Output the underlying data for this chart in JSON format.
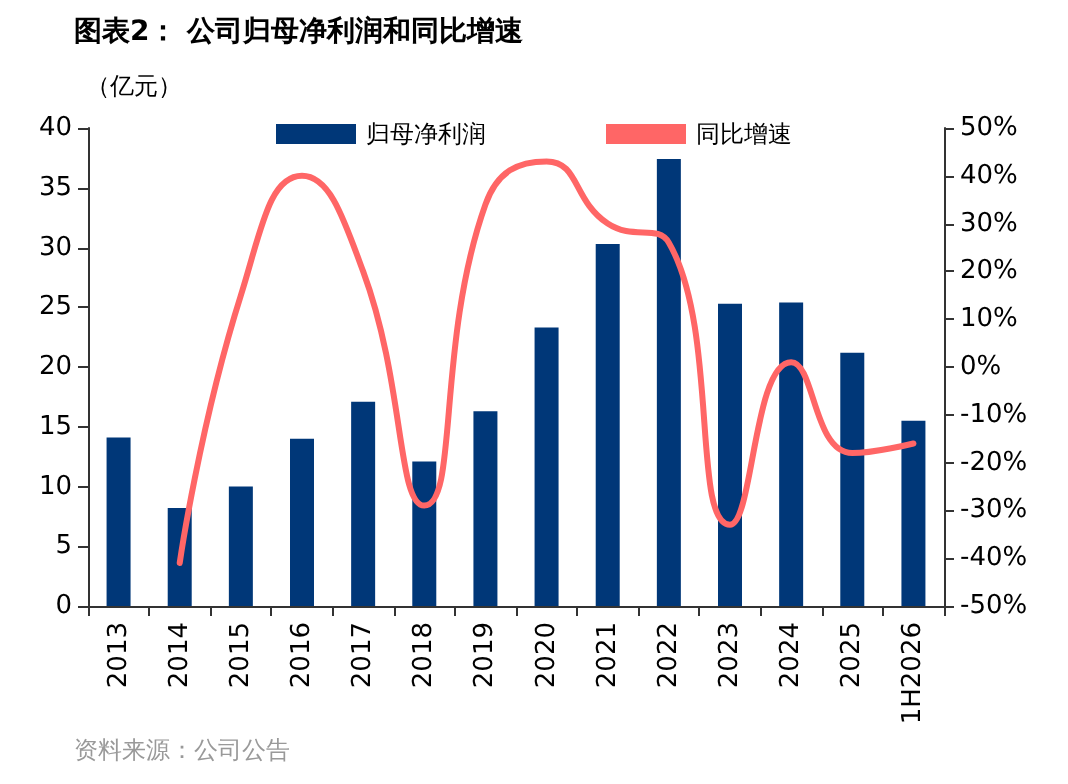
{
  "chart_data": {
    "type": "bar",
    "title": "图表2： 公司归母净利润和同比增速",
    "ylabel": "（亿元）",
    "categories": [
      "2013",
      "2014",
      "2015",
      "2016",
      "2017",
      "2018",
      "2019",
      "2020",
      "2021",
      "2022",
      "2023",
      "2024",
      "2025",
      "1H2026"
    ],
    "series": [
      {
        "name": "归母净利润",
        "color": "#003778",
        "values": [
          14.1,
          8.2,
          10,
          14,
          17.1,
          12.1,
          16.3,
          23.3,
          30.3,
          37.4,
          25.3,
          25.4,
          21.2,
          15.5
        ]
      },
      {
        "name": "同比增速",
        "type": "line",
        "axis": "y2",
        "color": "#ff6666",
        "marker": "none",
        "values": [
          null,
          -41,
          15,
          40,
          20,
          -29,
          34,
          43,
          30,
          26,
          -33,
          1,
          -18,
          -16
        ]
      }
    ],
    "ylim": [
      0,
      40
    ],
    "yticks": [
      0,
      5,
      10,
      15,
      20,
      25,
      30,
      35,
      40
    ],
    "y2lim": [
      -50,
      50
    ],
    "y2ticks": [
      {
        "value": -50,
        "label": "-50%"
      },
      {
        "value": -40,
        "label": "-40%"
      },
      {
        "value": -30,
        "label": "-30%"
      },
      {
        "value": -20,
        "label": "-20%"
      },
      {
        "value": -10,
        "label": "-10%"
      },
      {
        "value": 0,
        "label": "0%"
      },
      {
        "value": 10,
        "label": "10%"
      },
      {
        "value": 20,
        "label": "20%"
      },
      {
        "value": 30,
        "label": "30%"
      },
      {
        "value": 40,
        "label": "40%"
      },
      {
        "value": 50,
        "label": "50%"
      }
    ],
    "grid": false,
    "legend": "top",
    "annotations": [
      "资料来源：公司公告"
    ]
  }
}
